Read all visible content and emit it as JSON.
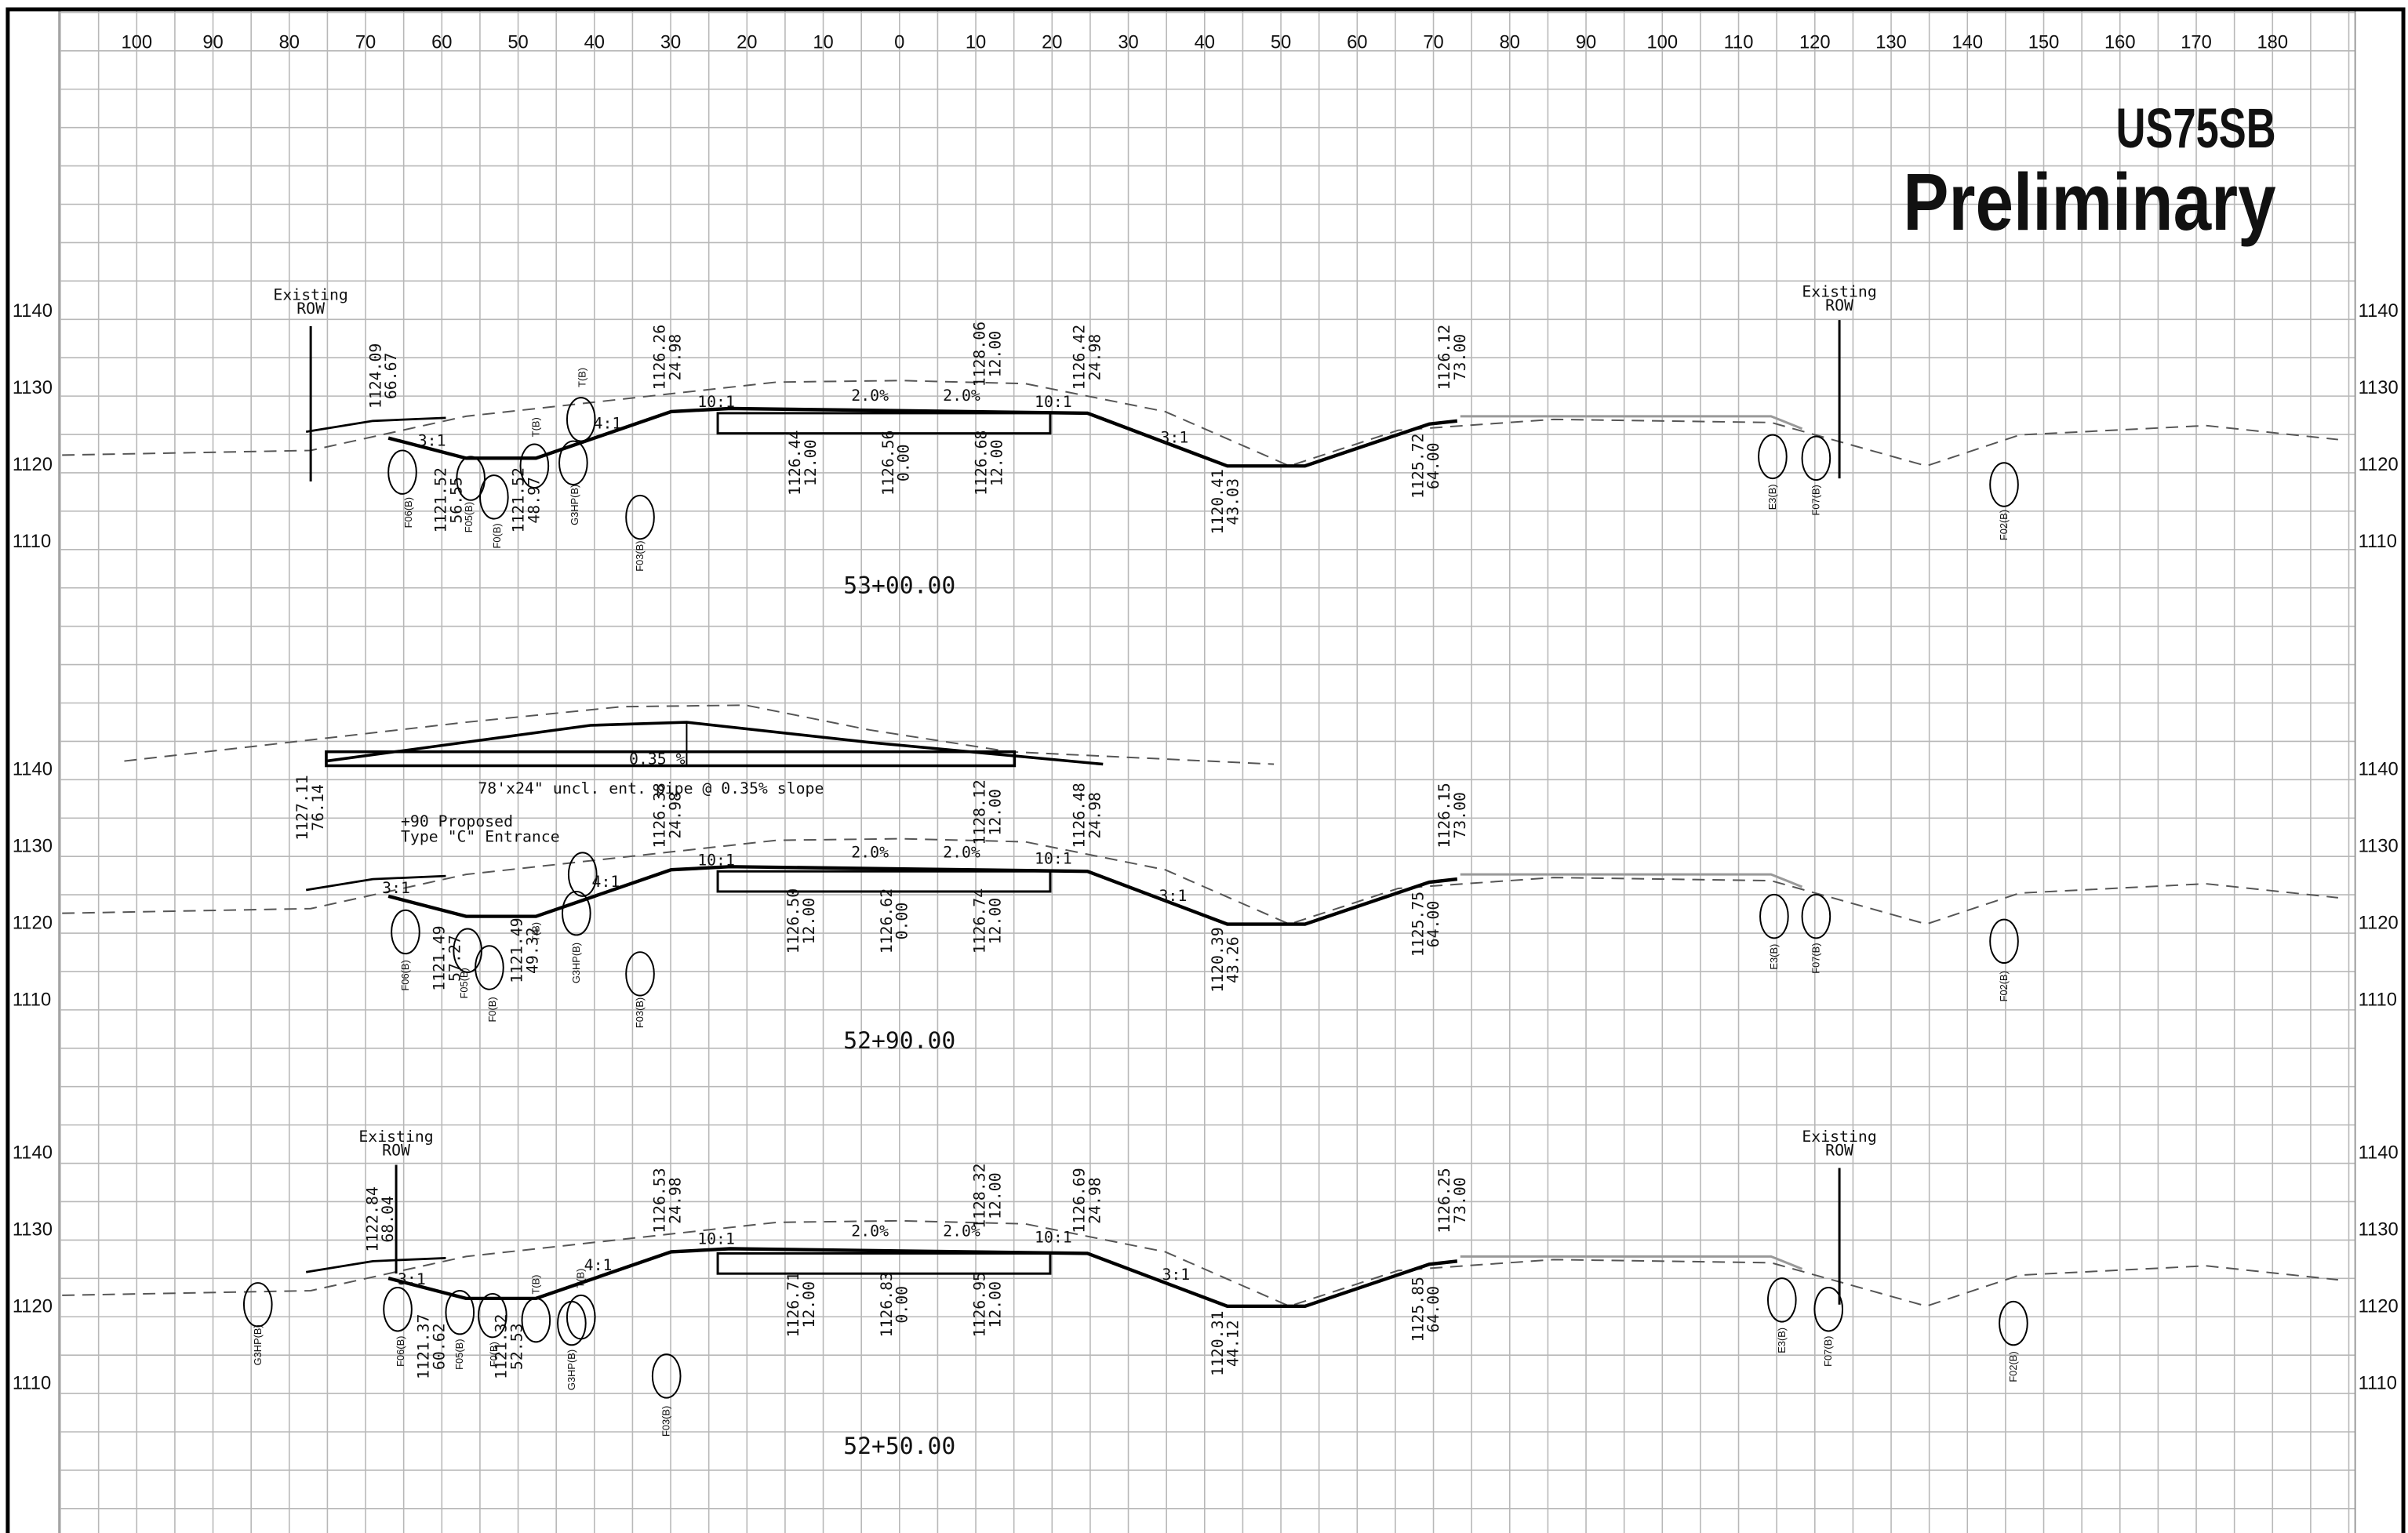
{
  "title": {
    "route": "US75SB",
    "status": "Preliminary"
  },
  "offset_labels": [
    "100",
    "90",
    "80",
    "70",
    "60",
    "50",
    "40",
    "30",
    "20",
    "10",
    "0",
    "10",
    "20",
    "30",
    "40",
    "50",
    "60",
    "70",
    "80",
    "90",
    "100",
    "110",
    "120",
    "130",
    "140",
    "150",
    "160",
    "170",
    "180"
  ],
  "pipe": {
    "slope": "0.35 %",
    "description": "78'x24\" uncl. ent. pipe @ 0.35% slope",
    "entrance": [
      "+90 Proposed",
      "Type \"C\" Entrance"
    ]
  },
  "sections": [
    {
      "station": "53+00.00",
      "elevations": [
        "1140",
        "1130",
        "1120",
        "1110"
      ],
      "row_labels": [
        {
          "line1": "Existing",
          "line2": "ROW"
        },
        {
          "line1": "Existing",
          "line2": "ROW"
        }
      ],
      "offset_elevations": [
        {
          "elevation": "1124.09",
          "offset": "66.67"
        },
        {
          "elevation": "1121.52",
          "offset": "56.55"
        },
        {
          "elevation": "1121.52",
          "offset": "48.97"
        },
        {
          "elevation": "1126.26",
          "offset": "24.98"
        },
        {
          "elevation": "1126.44",
          "offset": "12.00"
        },
        {
          "elevation": "1126.56",
          "offset": "0.00"
        },
        {
          "elevation": "1128.06",
          "offset": "12.00"
        },
        {
          "elevation": "1126.68",
          "offset": "12.00"
        },
        {
          "elevation": "1126.42",
          "offset": "24.98"
        },
        {
          "elevation": "1120.41",
          "offset": "43.03"
        },
        {
          "elevation": "1126.12",
          "offset": "73.00"
        },
        {
          "elevation": "1125.72",
          "offset": "64.00"
        }
      ],
      "features": [
        "F06(B)",
        "F05(B)",
        "F0(B)",
        "T(B)",
        "T(B)",
        "G3HP(B)",
        "F03(B)",
        "E3(B)",
        "F07(B)",
        "F02(B)"
      ],
      "slopes": [
        "3:1",
        "4:1",
        "10:1",
        "2.0%",
        "2.0%",
        "10:1",
        "3:1"
      ]
    },
    {
      "station": "52+90.00",
      "elevations": [
        "1140",
        "1130",
        "1120",
        "1110"
      ],
      "row_labels": [],
      "offset_elevations": [
        {
          "elevation": "1127.11",
          "offset": "76.14"
        },
        {
          "elevation": "1121.49",
          "offset": "57.27"
        },
        {
          "elevation": "1121.49",
          "offset": "49.32"
        },
        {
          "elevation": "1126.38",
          "offset": "24.98"
        },
        {
          "elevation": "1126.50",
          "offset": "12.00"
        },
        {
          "elevation": "1126.62",
          "offset": "0.00"
        },
        {
          "elevation": "1128.12",
          "offset": "12.00"
        },
        {
          "elevation": "1126.74",
          "offset": "12.00"
        },
        {
          "elevation": "1126.48",
          "offset": "24.98"
        },
        {
          "elevation": "1120.39",
          "offset": "43.26"
        },
        {
          "elevation": "1126.15",
          "offset": "73.00"
        },
        {
          "elevation": "1125.75",
          "offset": "64.00"
        }
      ],
      "features": [
        "F06(B)",
        "F05(B)",
        "F0(B)",
        "T(B)",
        "G3HP(B)",
        "F03(B)",
        "E3(B)",
        "F07(B)",
        "F02(B)"
      ],
      "slopes": [
        "3:1",
        "4:1",
        "10:1",
        "2.0%",
        "2.0%",
        "10:1",
        "3:1"
      ]
    },
    {
      "station": "52+50.00",
      "elevations": [
        "1140",
        "1130",
        "1120",
        "1110"
      ],
      "row_labels": [
        {
          "line1": "Existing",
          "line2": "ROW"
        },
        {
          "line1": "Existing",
          "line2": "ROW"
        }
      ],
      "offset_elevations": [
        {
          "elevation": "1122.84",
          "offset": "68.04"
        },
        {
          "elevation": "1121.37",
          "offset": "60.62"
        },
        {
          "elevation": "1121.32",
          "offset": "52.53"
        },
        {
          "elevation": "1126.53",
          "offset": "24.98"
        },
        {
          "elevation": "1126.71",
          "offset": "12.00"
        },
        {
          "elevation": "1126.83",
          "offset": "0.00"
        },
        {
          "elevation": "1128.32",
          "offset": "12.00"
        },
        {
          "elevation": "1126.95",
          "offset": "12.00"
        },
        {
          "elevation": "1126.69",
          "offset": "24.98"
        },
        {
          "elevation": "1120.31",
          "offset": "44.12"
        },
        {
          "elevation": "1126.25",
          "offset": "73.00"
        },
        {
          "elevation": "1125.85",
          "offset": "64.00"
        }
      ],
      "features": [
        "G3HP(B)",
        "F06(B)",
        "F05(B)",
        "F0(B)",
        "T(B)",
        "T(B)",
        "G3HP(B)",
        "F03(B)",
        "E3(B)",
        "F07(B)",
        "F02(B)"
      ],
      "slopes": [
        "3:1",
        "4:1",
        "10:1",
        "2.0%",
        "2.0%",
        "10:1",
        "3:1"
      ]
    }
  ]
}
